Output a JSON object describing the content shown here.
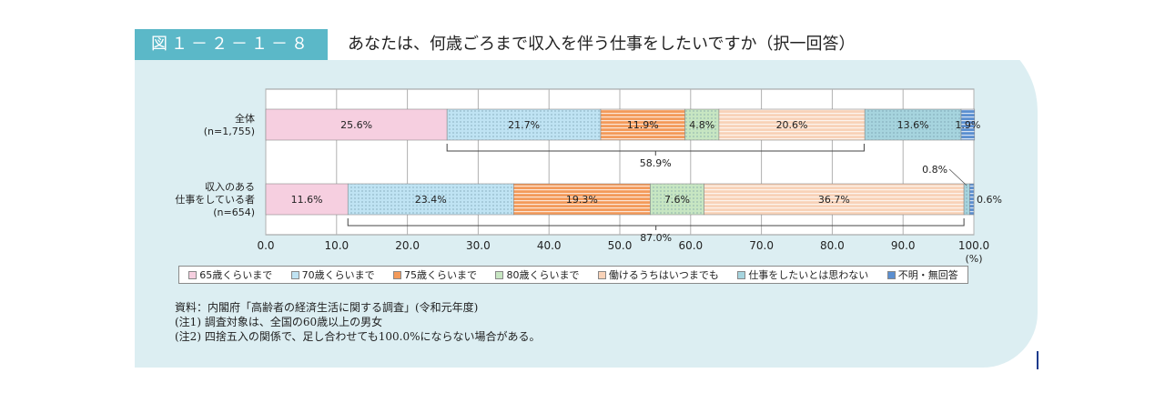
{
  "figure": {
    "number": "図１－２－１－８",
    "title": "あなたは、何歳ごろまで収入を伴う仕事をしたいですか（択一回答）"
  },
  "chart_data": {
    "type": "bar",
    "orientation": "horizontal-stacked",
    "xlim": [
      0,
      100
    ],
    "x_ticks": [
      "0.0",
      "10.0",
      "20.0",
      "30.0",
      "40.0",
      "50.0",
      "60.0",
      "70.0",
      "80.0",
      "90.0",
      "100.0"
    ],
    "x_unit": "(%)",
    "grid": true,
    "legend_position": "bottom",
    "categories": [
      [
        "全体",
        "(n=1,755)"
      ],
      [
        "収入のある",
        "仕事をしている者",
        "(n=654)"
      ]
    ],
    "series": [
      {
        "name": "65歳くらいまで",
        "color": "#f6cfe0",
        "pattern": "solid",
        "values": [
          25.6,
          11.6
        ],
        "labels": [
          "25.6%",
          "11.6%"
        ]
      },
      {
        "name": "70歳くらいまで",
        "color": "#bfe3f3",
        "pattern": "dots",
        "values": [
          21.7,
          23.4
        ],
        "labels": [
          "21.7%",
          "23.4%"
        ]
      },
      {
        "name": "75歳くらいまで",
        "color": "#f39a5a",
        "pattern": "hstripes",
        "values": [
          11.9,
          19.3
        ],
        "labels": [
          "11.9%",
          "19.3%"
        ]
      },
      {
        "name": "80歳くらいまで",
        "color": "#c7e6c2",
        "pattern": "dots",
        "values": [
          4.8,
          7.6
        ],
        "labels": [
          "4.8%",
          "7.6%"
        ]
      },
      {
        "name": "働けるうちはいつまでも",
        "color": "#f8d2b8",
        "pattern": "hstripes",
        "values": [
          20.6,
          36.7
        ],
        "labels": [
          "20.6%",
          "36.7%"
        ]
      },
      {
        "name": "仕事をしたいとは思わない",
        "color": "#a6d4de",
        "pattern": "dots",
        "values": [
          13.6,
          0.8
        ],
        "labels": [
          "13.6%",
          "0.8%"
        ]
      },
      {
        "name": "不明・無回答",
        "color": "#5b8fd0",
        "pattern": "hstripes",
        "values": [
          1.9,
          0.6
        ],
        "labels": [
          "1.9%",
          "0.6%"
        ]
      }
    ],
    "annotations": [
      {
        "bar": 0,
        "from": 25.6,
        "to": 84.5,
        "label": "58.9%"
      },
      {
        "bar": 1,
        "from": 11.6,
        "to": 98.6,
        "label": "87.0%"
      }
    ]
  },
  "notes": [
    "資料：内閣府「高齢者の経済生活に関する調査」(令和元年度)",
    "(注1) 調査対象は、全国の60歳以上の男女",
    "(注2) 四捨五入の関係で、足し合わせても100.0%にならない場合がある。"
  ]
}
